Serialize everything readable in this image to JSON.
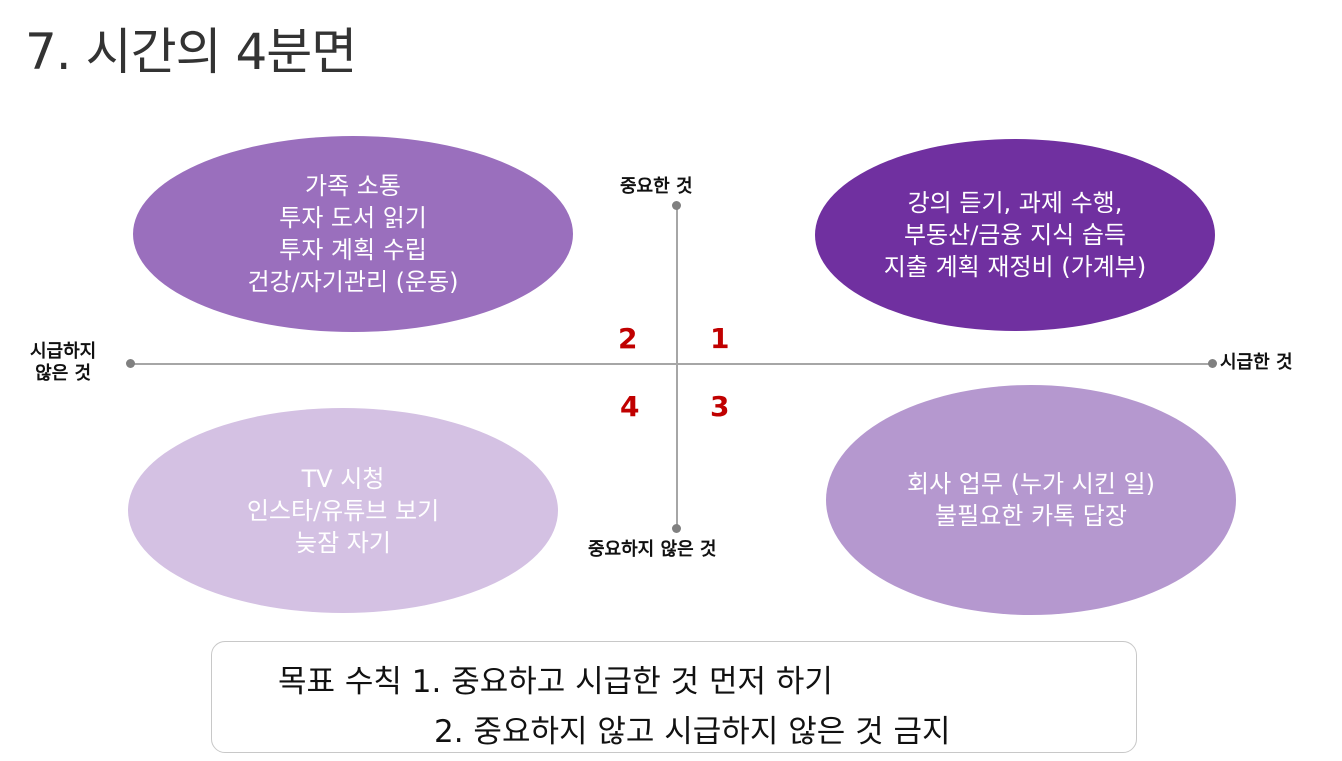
{
  "title": "7. 시간의 4분면",
  "axes": {
    "top": "중요한 것",
    "bottom": "중요하지 않은 것",
    "left": [
      "시급하지",
      "않은 것"
    ],
    "right": "시급한 것"
  },
  "quadrant_numbers": {
    "q1": "1",
    "q2": "2",
    "q3": "3",
    "q4": "4"
  },
  "quadrants": {
    "top_left": {
      "color": "#9a6fbd",
      "lines": [
        "가족 소통",
        "투자 도서 읽기",
        "투자 계획 수립",
        "건강/자기관리 (운동)"
      ]
    },
    "top_right": {
      "color": "#7030a0",
      "lines": [
        "강의 듣기, 과제 수행,",
        "부동산/금융 지식 습득",
        "지출 계획 재정비 (가계부)"
      ]
    },
    "bottom_left": {
      "color": "#d4c1e3",
      "lines": [
        "TV 시청",
        "인스타/유튜브 보기",
        "늦잠 자기"
      ]
    },
    "bottom_right": {
      "color": "#b598cf",
      "lines": [
        "회사 업무 (누가 시킨 일)",
        "불필요한 카톡 답장"
      ]
    }
  },
  "rules": {
    "line1": "목표 수칙 1. 중요하고 시급한 것 먼저 하기",
    "line2": "2. 중요하지 않고 시급하지 않은 것 금지"
  }
}
